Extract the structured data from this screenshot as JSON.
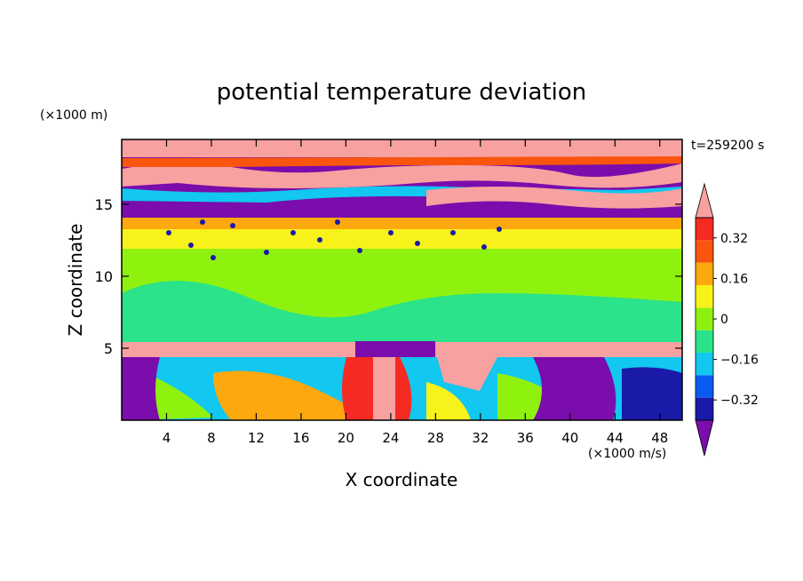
{
  "chart_data": {
    "type": "heatmap",
    "title": "potential temperature deviation",
    "xlabel": "X coordinate",
    "ylabel": "Z coordinate",
    "x_unit": "(×1000 m/s)",
    "y_unit": "(×1000 m)",
    "time_label": "t=259200 s",
    "xlim": [
      0,
      50
    ],
    "ylim": [
      0,
      19.5
    ],
    "x_ticks": [
      4,
      8,
      12,
      16,
      20,
      24,
      28,
      32,
      36,
      40,
      44,
      48
    ],
    "y_ticks": [
      5,
      10,
      15
    ],
    "colorbar": {
      "labels": [
        {
          "text": "0.32",
          "value": 0.32
        },
        {
          "text": "0.16",
          "value": 0.16
        },
        {
          "text": "0",
          "value": 0
        },
        {
          "text": "−0.16",
          "value": -0.16
        },
        {
          "text": "−0.32",
          "value": -0.32
        }
      ],
      "levels": [
        {
          "color": "#7a0dab"
        },
        {
          "color": "#1a1aa8"
        },
        {
          "color": "#0a5cf0"
        },
        {
          "color": "#12c7f0"
        },
        {
          "color": "#2be38a"
        },
        {
          "color": "#8ff20e"
        },
        {
          "color": "#f7f21a"
        },
        {
          "color": "#fca80e"
        },
        {
          "color": "#f9550f"
        },
        {
          "color": "#f52a23"
        },
        {
          "color": "#f7a1a1"
        }
      ],
      "extend": "both"
    },
    "layers": [
      {
        "z": [
          0.0,
          4.3
        ],
        "description_free": true,
        "dominant": "mixed"
      },
      {
        "z": [
          4.3,
          5.5
        ],
        "dominant": "#f7a1a1"
      },
      {
        "z": [
          5.5,
          12.3
        ],
        "dominant": "#8ff20e"
      },
      {
        "z": [
          12.3,
          14.0
        ],
        "dominant": "#f7f21a"
      },
      {
        "z": [
          14.0,
          19.5
        ],
        "dominant": "mixed"
      }
    ]
  }
}
